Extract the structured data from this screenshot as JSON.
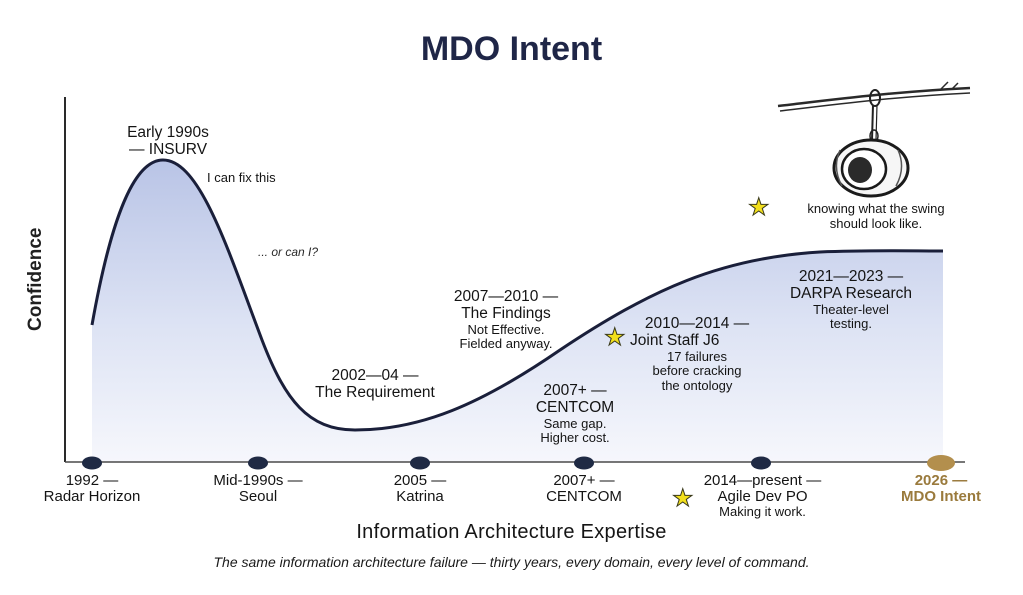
{
  "title": "MDO Intent",
  "y_axis_label": "Confidence",
  "x_axis_label": "Information Architecture Expertise",
  "caption": "The same information architecture failure — thirty years, every domain, every level of command.",
  "colors": {
    "title": "#1f2647",
    "curve": "#1a1f3a",
    "fill_top": "#b9c4e6",
    "fill_bottom": "#f4f6fc",
    "dot": "#1f2a44",
    "accent_dot": "#b38f4d",
    "star": "#f2df1d"
  },
  "annotations": {
    "peak": {
      "line1": "Early 1990s",
      "line2": "— INSURV"
    },
    "fix": "I can fix this",
    "orcan": "... or can I?",
    "requirement": {
      "line1": "2002—04 —",
      "line2": "The Requirement"
    },
    "findings": {
      "line1": "2007—2010 —",
      "line2": "The Findings",
      "line3": "Not Effective.",
      "line4": "Fielded anyway."
    },
    "centcom": {
      "line1": "2007+ —",
      "line2": "CENTCOM",
      "line3": "Same gap.",
      "line4": "Higher cost."
    },
    "js6": {
      "line1": "2010—2014 —",
      "line2": "Joint Staff J6",
      "line3": "17 failures",
      "line4": "before cracking",
      "line5": "the ontology"
    },
    "darpa": {
      "line1": "2021—2023 —",
      "line2": "DARPA Research",
      "line3": "Theater-level",
      "line4": "testing."
    },
    "swing": {
      "line1": "knowing what the swing",
      "line2": "should look like."
    }
  },
  "ticks": [
    {
      "line1": "1992 —",
      "line2": "Radar Horizon"
    },
    {
      "line1": "Mid-1990s —",
      "line2": "Seoul"
    },
    {
      "line1": "2005 —",
      "line2": "Katrina"
    },
    {
      "line1": "2007+ —",
      "line2": "CENTCOM"
    },
    {
      "line1": "2014—present —",
      "line2": "Agile Dev PO",
      "line3": "Making it work."
    },
    {
      "line1": "2026 —",
      "line2": "MDO Intent"
    }
  ],
  "icons": {
    "star": "star-icon",
    "swing": "tire-swing-icon"
  }
}
